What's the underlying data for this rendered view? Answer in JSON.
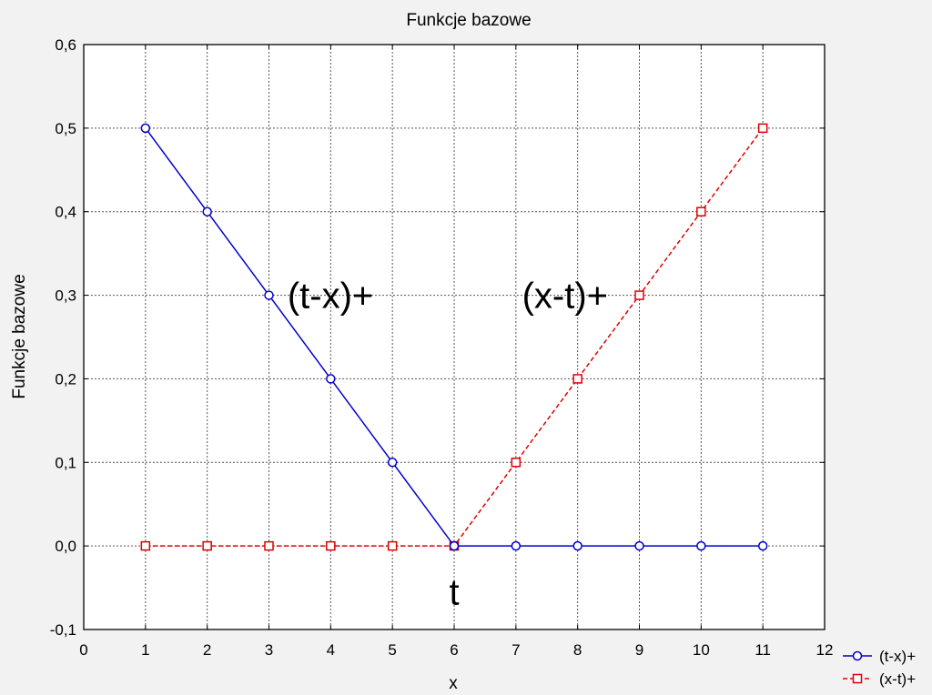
{
  "chart_data": {
    "type": "line",
    "title": "Funkcje bazowe",
    "xlabel": "x",
    "ylabel": "Funkcje bazowe",
    "xlim": [
      0,
      12
    ],
    "ylim": [
      -0.1,
      0.6
    ],
    "x_ticks": [
      "0",
      "1",
      "2",
      "3",
      "4",
      "5",
      "6",
      "7",
      "8",
      "9",
      "10",
      "11",
      "12"
    ],
    "y_ticks": [
      "-0,1",
      "0,0",
      "0,1",
      "0,2",
      "0,3",
      "0,4",
      "0,5",
      "0,6"
    ],
    "grid": true,
    "legend_position": "bottom-right",
    "x": [
      1,
      2,
      3,
      4,
      5,
      6,
      7,
      8,
      9,
      10,
      11
    ],
    "series": [
      {
        "name": "(t-x)+",
        "values": [
          0.5,
          0.4,
          0.3,
          0.2,
          0.1,
          0.0,
          0.0,
          0.0,
          0.0,
          0.0,
          0.0
        ],
        "color": "#0000cc",
        "marker": "circle",
        "line": "solid"
      },
      {
        "name": "(x-t)+",
        "values": [
          0.0,
          0.0,
          0.0,
          0.0,
          0.0,
          0.0,
          0.1,
          0.2,
          0.3,
          0.4,
          0.5
        ],
        "color": "#e00000",
        "marker": "square",
        "line": "dashed"
      }
    ],
    "annotations": [
      {
        "text": "(t-x)+",
        "x": 3.3,
        "y": 0.3
      },
      {
        "text": "(x-t)+",
        "x": 7.1,
        "y": 0.3
      },
      {
        "text": "t",
        "x": 6.0,
        "y": -0.055
      }
    ]
  }
}
